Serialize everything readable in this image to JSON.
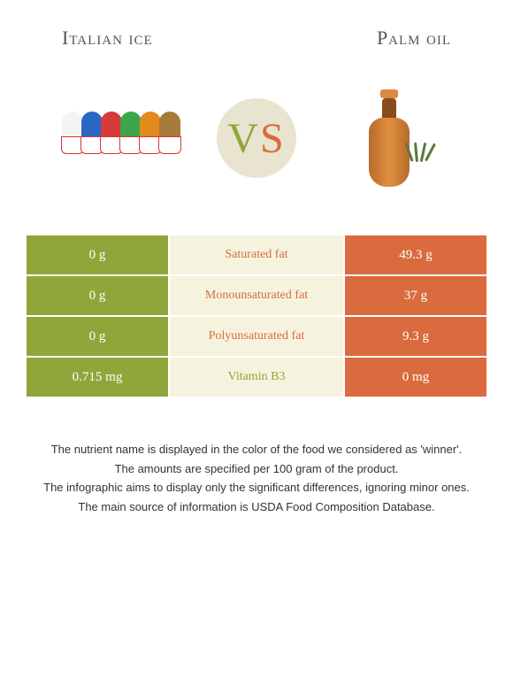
{
  "header": {
    "left_title": "Italian ice",
    "right_title": "Palm oil"
  },
  "vs": {
    "v": "V",
    "s": "S"
  },
  "colors": {
    "left": "#8fa63a",
    "right": "#d96b3e",
    "mid_bg": "#f5f3de",
    "vs_bg": "#e8e4cf"
  },
  "cone_colors": [
    "#f4f4f4",
    "#2a66c4",
    "#d83a3a",
    "#3aa84a",
    "#e28a1a",
    "#a57a3a"
  ],
  "rows": [
    {
      "left": "0 g",
      "label": "Saturated fat",
      "label_side": "right",
      "right": "49.3 g"
    },
    {
      "left": "0 g",
      "label": "Monounsaturated fat",
      "label_side": "right",
      "right": "37 g"
    },
    {
      "left": "0 g",
      "label": "Polyunsaturated fat",
      "label_side": "right",
      "right": "9.3 g"
    },
    {
      "left": "0.715 mg",
      "label": "Vitamin B3",
      "label_side": "left",
      "right": "0 mg"
    }
  ],
  "notes": [
    "The nutrient name is displayed in the color of the food we considered as 'winner'.",
    "The amounts are specified per 100 gram of the product.",
    "The infographic aims to display only the significant differences, ignoring minor ones.",
    "The main source of information is USDA Food Composition Database."
  ]
}
